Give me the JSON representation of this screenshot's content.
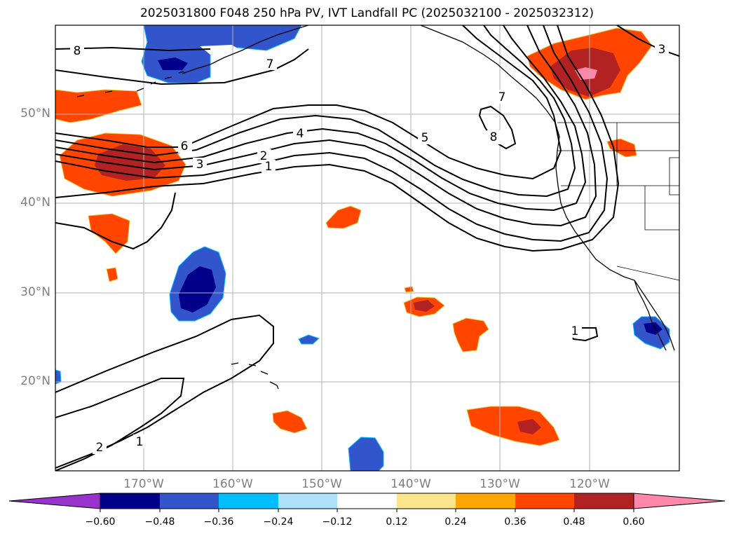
{
  "title": "2025031800 F048 250 hPa PV, IVT Landfall PC (2025032100 - 2025032312)",
  "map": {
    "lat_labels": [
      "50°N",
      "40°N",
      "30°N",
      "20°N"
    ],
    "lon_labels": [
      "170°W",
      "160°W",
      "150°W",
      "140°W",
      "130°W",
      "120°W"
    ],
    "contour_labels": [
      "8",
      "7",
      "6",
      "5",
      "4",
      "3",
      "2",
      "1",
      "8",
      "7",
      "3",
      "1",
      "2",
      "1"
    ]
  },
  "colorbar": {
    "ticks": [
      "−0.60",
      "−0.48",
      "−0.36",
      "−0.24",
      "−0.12",
      "0.12",
      "0.24",
      "0.36",
      "0.48",
      "0.60"
    ],
    "colors": [
      "#9932cc",
      "#00008b",
      "#3355cc",
      "#00bfff",
      "#aee2fa",
      "#ffffff",
      "#fbe58c",
      "#ffa500",
      "#ff4500",
      "#b22222",
      "#ff88aa"
    ]
  }
}
